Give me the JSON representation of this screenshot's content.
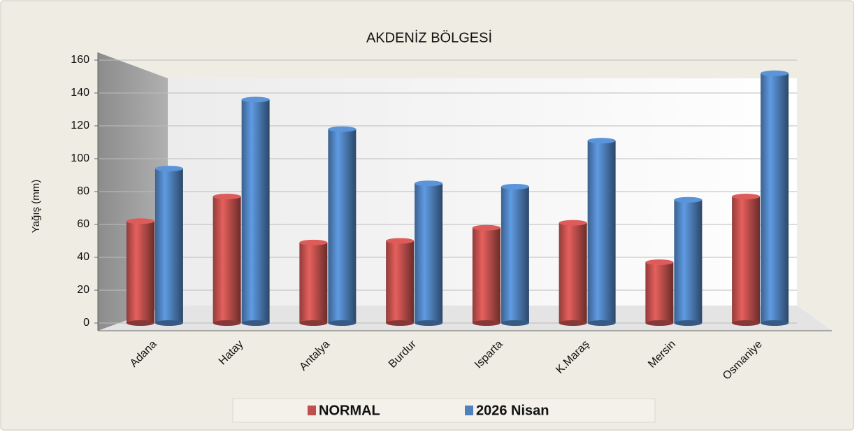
{
  "chart_data": {
    "type": "bar",
    "title": "AKDENİZ BÖLGESİ",
    "y_label": "Yağış (mm)",
    "categories": [
      "Adana",
      "Hatay",
      "Antalya",
      "Burdur",
      "Isparta",
      "K.Maraş",
      "Mersin",
      "Osmaniye"
    ],
    "series": [
      {
        "name": "NORMAL",
        "color": "#c0504d",
        "values": [
          62,
          77,
          49,
          50,
          58,
          61,
          37,
          77
        ]
      },
      {
        "name": "2026 Nisan",
        "color": "#4f81bd",
        "values": [
          94,
          136,
          118,
          85,
          83,
          111,
          75,
          152
        ]
      }
    ],
    "ylim": [
      0,
      160
    ],
    "yticks": [
      0,
      20,
      40,
      60,
      80,
      100,
      120,
      140,
      160
    ],
    "grid": true,
    "legend": "bottom"
  }
}
